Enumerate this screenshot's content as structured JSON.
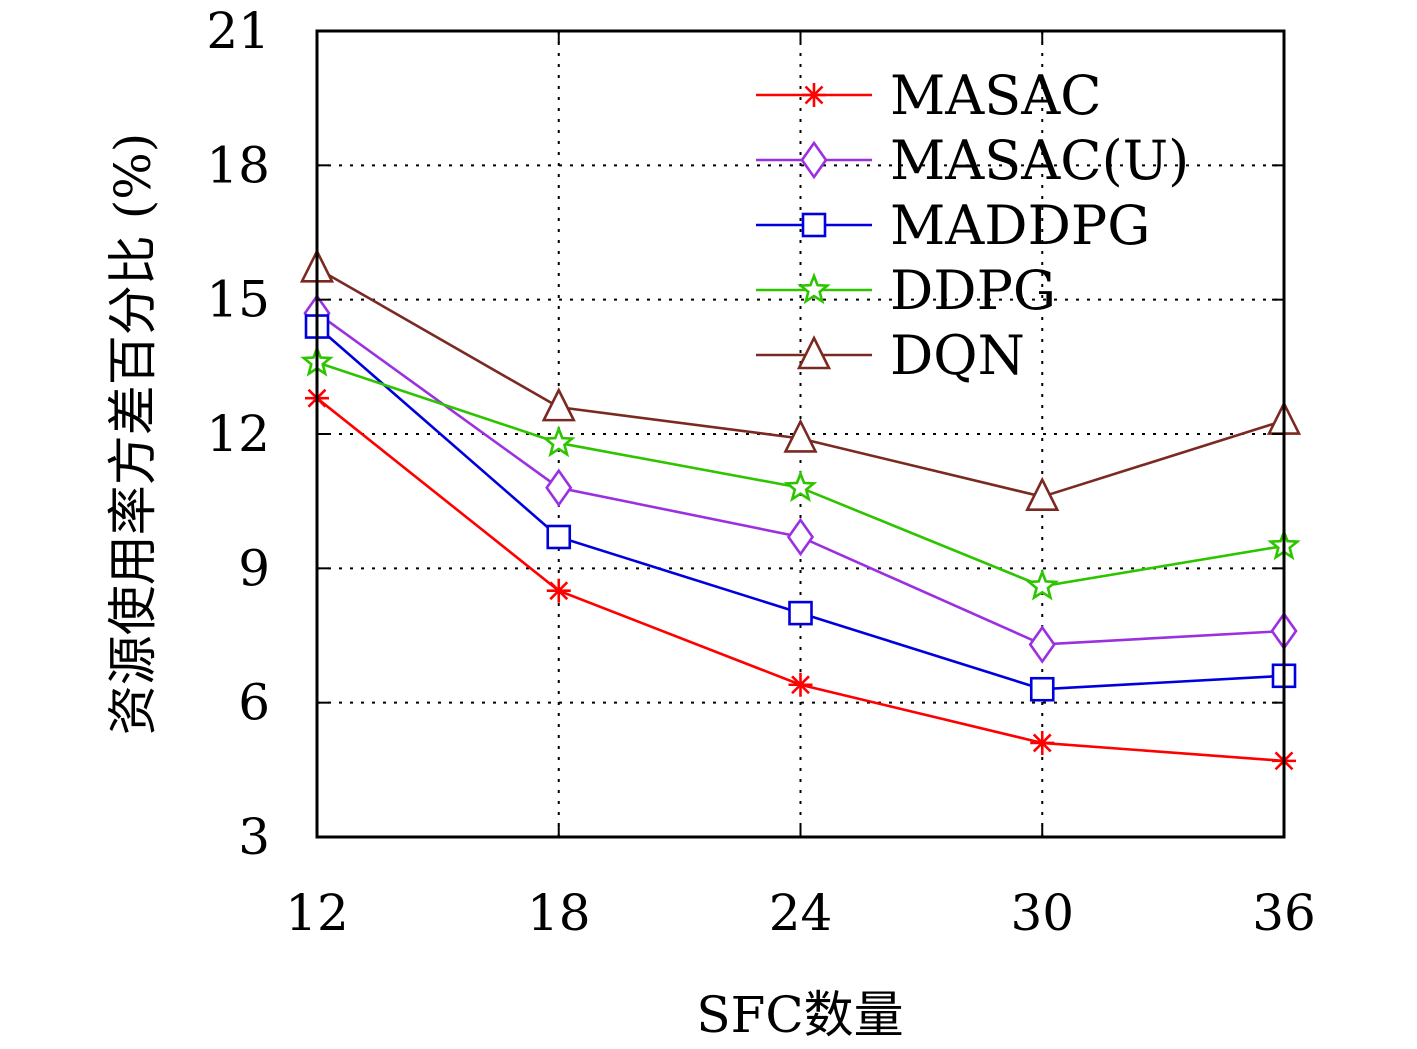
{
  "chart_data": {
    "type": "line",
    "xlabel": "SFC数量",
    "ylabel": "资源使用率方差百分比 (%)",
    "x": [
      12,
      18,
      24,
      30,
      36
    ],
    "xticks": [
      "12",
      "18",
      "24",
      "30",
      "36"
    ],
    "yticks": [
      "3",
      "6",
      "9",
      "12",
      "15",
      "18",
      "21"
    ],
    "ylim": [
      3,
      21
    ],
    "grid": true,
    "legend_position": "top-right",
    "series": [
      {
        "name": "MASAC",
        "marker": "asterisk",
        "color": "#ff0000",
        "values": [
          12.8,
          8.5,
          6.4,
          5.1,
          4.7
        ]
      },
      {
        "name": "MASAC(U)",
        "marker": "diamond",
        "color": "#9b30e0",
        "values": [
          14.7,
          10.8,
          9.7,
          7.3,
          7.6
        ]
      },
      {
        "name": "MADDPG",
        "marker": "square",
        "color": "#0000dd",
        "values": [
          14.4,
          9.7,
          8.0,
          6.3,
          6.6
        ]
      },
      {
        "name": "DDPG",
        "marker": "star",
        "color": "#2ec400",
        "values": [
          13.6,
          11.8,
          10.8,
          8.6,
          9.5
        ]
      },
      {
        "name": "DQN",
        "marker": "triangle",
        "color": "#7b2a22",
        "values": [
          15.7,
          12.6,
          11.9,
          10.6,
          12.3
        ]
      }
    ]
  }
}
